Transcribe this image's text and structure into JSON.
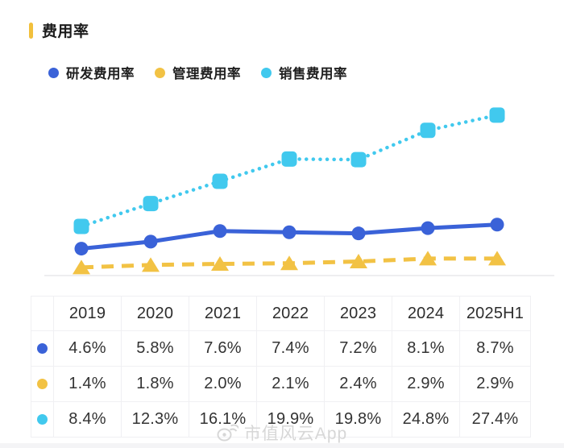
{
  "page": {
    "title": "费用率",
    "accent_color": "#F2C03C",
    "watermark": "市值风云App"
  },
  "legend": [
    {
      "label": "研发费用率",
      "color": "#3A62D8"
    },
    {
      "label": "管理费用率",
      "color": "#F2C244"
    },
    {
      "label": "销售费用率",
      "#comment": "",
      "color": "#41C9EE"
    }
  ],
  "chart_data": {
    "type": "line",
    "title": "费用率",
    "categories": [
      "2019",
      "2020",
      "2021",
      "2022",
      "2023",
      "2024",
      "2025H1"
    ],
    "series": [
      {
        "name": "研发费用率",
        "color": "#3A62D8",
        "line_style": "solid",
        "marker": "circle",
        "values": [
          4.6,
          5.8,
          7.6,
          7.4,
          7.2,
          8.1,
          8.7
        ]
      },
      {
        "name": "管理费用率",
        "color": "#F2C244",
        "line_style": "dashed",
        "marker": "triangle",
        "values": [
          1.4,
          1.8,
          2.0,
          2.1,
          2.4,
          2.9,
          2.9
        ]
      },
      {
        "name": "销售费用率",
        "color": "#41C9EE",
        "line_style": "dotted",
        "marker": "square",
        "values": [
          8.4,
          12.3,
          16.1,
          19.9,
          19.8,
          24.8,
          27.4
        ]
      }
    ],
    "unit": "%",
    "ylim": [
      0,
      30
    ],
    "grid": false,
    "axis_labels_shown": false,
    "legend_position": "top"
  },
  "table": {
    "headers": [
      "2019",
      "2020",
      "2021",
      "2022",
      "2023",
      "2024",
      "2025H1"
    ],
    "rows": [
      {
        "series": "研发费用率",
        "dot_color": "#3A62D8",
        "values": [
          "4.6%",
          "5.8%",
          "7.6%",
          "7.4%",
          "7.2%",
          "8.1%",
          "8.7%"
        ]
      },
      {
        "series": "管理费用率",
        "dot_color": "#F2C244",
        "values": [
          "1.4%",
          "1.8%",
          "2.0%",
          "2.1%",
          "2.4%",
          "2.9%",
          "2.9%"
        ]
      },
      {
        "series": "销售费用率",
        "dot_color": "#41C9EE",
        "values": [
          "8.4%",
          "12.3%",
          "16.1%",
          "19.9%",
          "19.8%",
          "24.8%",
          "27.4%"
        ]
      }
    ]
  }
}
